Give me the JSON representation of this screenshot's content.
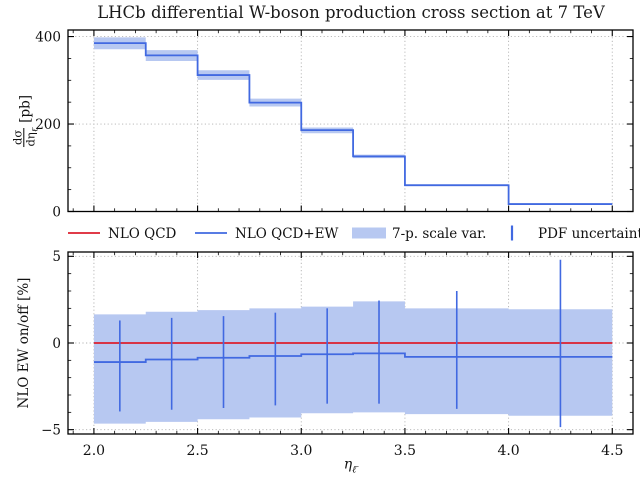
{
  "title": "LHCb differential W-boson production cross section at 7 TeV",
  "axis_labels": {
    "y_top_numerator": "dσ",
    "y_top_denominator_main": "dη",
    "y_top_denominator_sub": "ℓ̄",
    "y_top_unit": "[pb]",
    "y_bottom": "NLO EW on/off [%]",
    "x_main": "η",
    "x_sub": "ℓ̄"
  },
  "colors": {
    "nlo_qcd": "#dc1f2e",
    "nlo_qcd_ew": "#4169e1",
    "scale_band": "#b7c8f1",
    "pdf_err": "#4169e1",
    "grid": "#b2b2b2",
    "frame": "#000000",
    "text": "#111111"
  },
  "legend": {
    "items": [
      {
        "label": "NLO QCD",
        "swatch": "line",
        "color_key": "nlo_qcd"
      },
      {
        "label": "NLO QCD+EW",
        "swatch": "line",
        "color_key": "nlo_qcd_ew"
      },
      {
        "label": "7-p. scale var.",
        "swatch": "patch",
        "color_key": "scale_band"
      },
      {
        "label": "PDF uncertainty",
        "swatch": "vbar",
        "color_key": "pdf_err"
      }
    ]
  },
  "chart_data": [
    {
      "type": "line",
      "style": "step-histogram-with-band",
      "panel": "top",
      "title": "LHCb differential W-boson production cross section at 7 TeV",
      "ylabel": "dσ/dη_ℓ̄ [pb]",
      "xlabel": "",
      "xlim": [
        1.875,
        4.6
      ],
      "ylim": [
        0,
        415
      ],
      "xticks": [
        2.0,
        2.5,
        3.0,
        3.5,
        4.0,
        4.5
      ],
      "yticks": [
        0,
        200,
        400
      ],
      "x_minor_step": 0.1,
      "y_minor_step": 50,
      "grid": true,
      "bin_edges": [
        2.0,
        2.25,
        2.5,
        2.75,
        3.0,
        3.25,
        3.5,
        4.0,
        4.5
      ],
      "series": [
        {
          "name": "NLO QCD+EW",
          "values": [
            385,
            357,
            312,
            249,
            186,
            126,
            60,
            17
          ]
        },
        {
          "name": "7-p. scale var. low",
          "values": [
            371,
            344,
            301,
            240,
            179,
            122,
            58,
            16
          ]
        },
        {
          "name": "7-p. scale var. high",
          "values": [
            398,
            369,
            323,
            258,
            192,
            130,
            62.5,
            18
          ]
        }
      ]
    },
    {
      "type": "line",
      "style": "ratio-step-with-band-and-errorbars",
      "panel": "bottom",
      "ylabel": "NLO EW on/off [%]",
      "xlabel": "η_ℓ̄",
      "xlim": [
        1.875,
        4.6
      ],
      "ylim": [
        -5.25,
        5.25
      ],
      "xticks": [
        2.0,
        2.5,
        3.0,
        3.5,
        4.0,
        4.5
      ],
      "yticks": [
        -5,
        0,
        5
      ],
      "x_minor_step": 0.1,
      "y_minor_step": 1,
      "grid": true,
      "bin_edges": [
        2.0,
        2.25,
        2.5,
        2.75,
        3.0,
        3.25,
        3.5,
        4.0,
        4.5
      ],
      "series": [
        {
          "name": "NLO QCD",
          "values": [
            0,
            0,
            0,
            0,
            0,
            0,
            0,
            0
          ]
        },
        {
          "name": "NLO QCD+EW",
          "values": [
            -1.1,
            -0.95,
            -0.85,
            -0.75,
            -0.65,
            -0.6,
            -0.8,
            -0.8
          ]
        },
        {
          "name": "7-p. scale var. low",
          "values": [
            -4.65,
            -4.55,
            -4.4,
            -4.3,
            -4.05,
            -4.0,
            -4.1,
            -4.2
          ]
        },
        {
          "name": "7-p. scale var. high",
          "values": [
            1.65,
            1.8,
            1.9,
            2.0,
            2.1,
            2.4,
            2.0,
            1.95
          ]
        }
      ],
      "pdf_uncertainty": {
        "x": [
          2.125,
          2.375,
          2.625,
          2.875,
          3.125,
          3.375,
          3.75,
          4.25
        ],
        "lo": [
          -3.95,
          -3.85,
          -3.75,
          -3.6,
          -3.5,
          -3.5,
          -3.8,
          -4.85
        ],
        "hi": [
          1.3,
          1.45,
          1.55,
          1.75,
          2.0,
          2.45,
          3.0,
          4.8
        ]
      }
    }
  ]
}
